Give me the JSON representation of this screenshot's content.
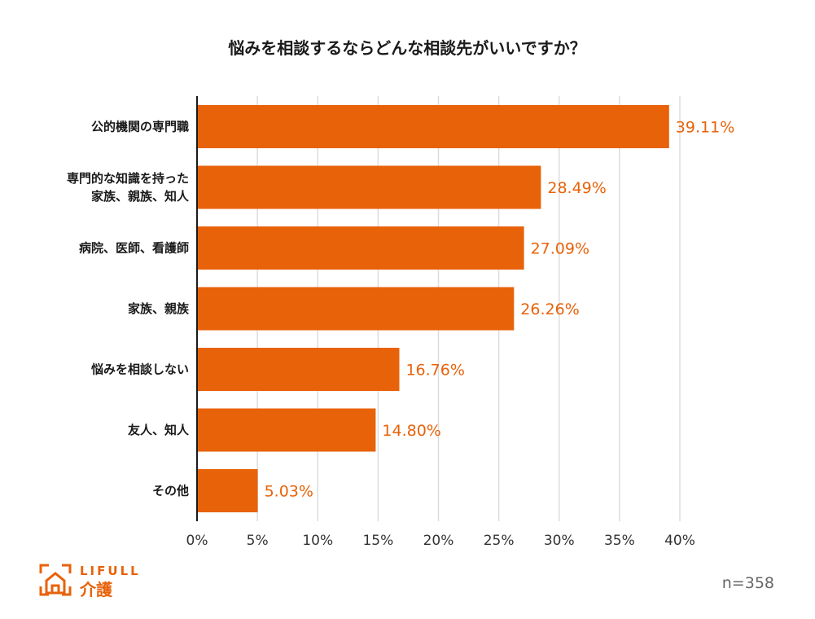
{
  "chart_data": {
    "type": "bar",
    "orientation": "horizontal",
    "title": "悩みを相談するならどんな相談先がいいですか？",
    "categories": [
      [
        "公的機関の専門職"
      ],
      [
        "専門的な知識を持った",
        "家族、親族、知人"
      ],
      [
        "病院、医師、看護師"
      ],
      [
        "家族、親族"
      ],
      [
        "悩みを相談しない"
      ],
      [
        "友人、知人"
      ],
      [
        "その他"
      ]
    ],
    "values": [
      39.11,
      28.49,
      27.09,
      26.26,
      16.76,
      14.8,
      5.03
    ],
    "value_labels": [
      "39.11%",
      "28.49%",
      "27.09%",
      "26.26%",
      "16.76%",
      "14.80%",
      "5.03%"
    ],
    "xlim": [
      0,
      40
    ],
    "xticks": [
      0,
      5,
      10,
      15,
      20,
      25,
      30,
      35,
      40
    ],
    "xtick_labels": [
      "0%",
      "5%",
      "10%",
      "15%",
      "20%",
      "25%",
      "30%",
      "35%",
      "40%"
    ],
    "xlabel": "",
    "ylabel": "",
    "grid": true,
    "bar_color": "#E8620A",
    "grid_color": "#DDDDDD",
    "label_color": "#E8620A"
  },
  "sample_note": "n=358",
  "logo": {
    "brand": "LIFULL",
    "sub": "介護",
    "color": "#E8620A"
  }
}
